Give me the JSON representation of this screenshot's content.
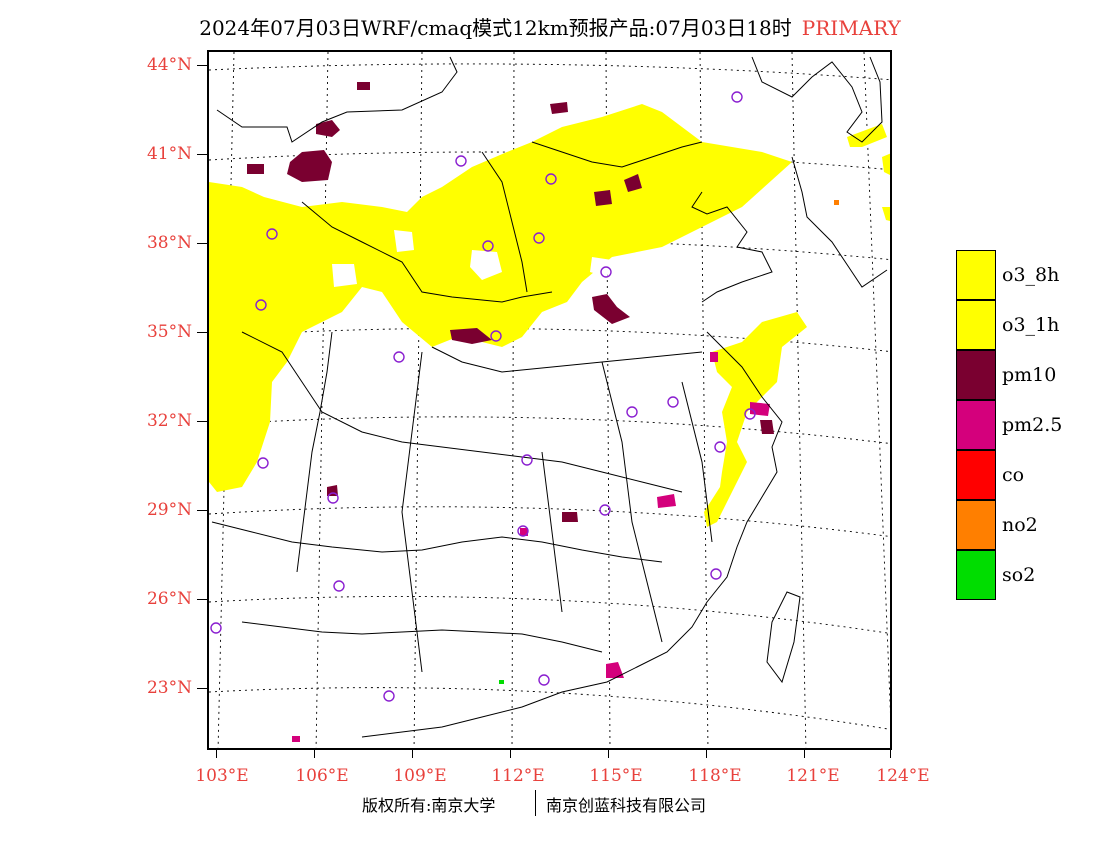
{
  "title": {
    "main": "2024年07月03日WRF/cmaq模式12km预报产品:07月03日18时",
    "tag": "PRIMARY"
  },
  "axes": {
    "y_labels": [
      "44°N",
      "41°N",
      "38°N",
      "35°N",
      "32°N",
      "29°N",
      "26°N",
      "23°N"
    ],
    "x_labels": [
      "103°E",
      "106°E",
      "109°E",
      "112°E",
      "115°E",
      "118°E",
      "121°E",
      "124°E"
    ]
  },
  "legend": [
    {
      "label": "o3_8h",
      "color": "#ffff00"
    },
    {
      "label": "o3_1h",
      "color": "#ffff00"
    },
    {
      "label": "pm10",
      "color": "#7a0030"
    },
    {
      "label": "pm2.5",
      "color": "#d4007c"
    },
    {
      "label": "co",
      "color": "#ff0000"
    },
    {
      "label": "no2",
      "color": "#ff7f00"
    },
    {
      "label": "so2",
      "color": "#00dd00"
    }
  ],
  "footer": {
    "left": "版权所有:南京大学",
    "right": "南京创蓝科技有限公司"
  },
  "colors": {
    "o3": "#ffff00",
    "pm10": "#7a0030",
    "pm25": "#d4007c",
    "station": "#8a1fd0",
    "axis_label": "#e8413c"
  }
}
